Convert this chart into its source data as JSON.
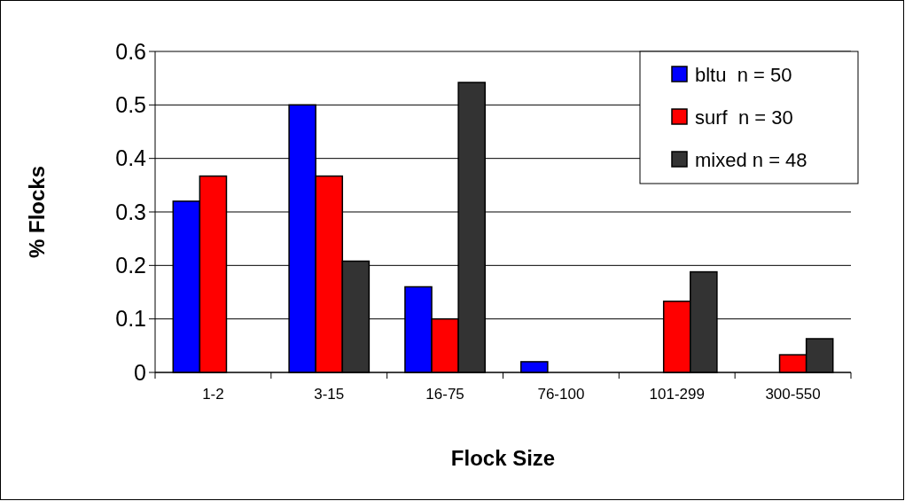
{
  "chart_data": {
    "type": "bar",
    "xlabel": "Flock Size",
    "ylabel": "% Flocks",
    "categories": [
      "1-2",
      "3-15",
      "16-75",
      "76-100",
      "101-299",
      "300-550"
    ],
    "series": [
      {
        "name": "bltu  n = 50",
        "color": "#0000ff",
        "values": [
          0.32,
          0.5,
          0.16,
          0.02,
          0,
          0
        ]
      },
      {
        "name": "surf  n = 30",
        "color": "#ff0000",
        "values": [
          0.367,
          0.367,
          0.1,
          0,
          0.133,
          0.033
        ]
      },
      {
        "name": "mixed n = 48",
        "color": "#333333",
        "values": [
          0,
          0.208,
          0.542,
          0,
          0.188,
          0.063
        ]
      }
    ],
    "ylim": [
      0,
      0.6
    ],
    "yticks": [
      0,
      0.1,
      0.2,
      0.3,
      0.4,
      0.5,
      0.6
    ],
    "grid": "y",
    "legend": "top right"
  }
}
